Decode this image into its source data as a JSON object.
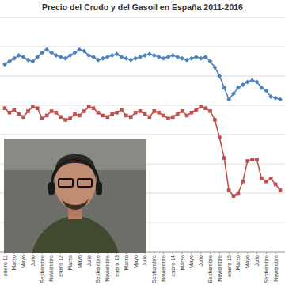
{
  "chart_data": {
    "type": "line",
    "title": "Precio del Crudo y del Gasoil en España 2011-2016",
    "categories": [
      "enero 11",
      null,
      "Marzo",
      null,
      "Mayo",
      null,
      "Julio",
      null,
      "Septiembre",
      null,
      "Noviembre",
      null,
      "enero 12",
      null,
      "Marzo",
      null,
      "Mayo",
      null,
      "Julio",
      null,
      "Septiembre",
      null,
      "Noviembre",
      null,
      "enero 13",
      null,
      "Marzo",
      null,
      "Mayo",
      null,
      "Julio",
      null,
      "Septiembre",
      null,
      "Noviembre",
      null,
      "enero 14",
      null,
      "Marzo",
      null,
      "Mayo",
      null,
      "Julio",
      null,
      "Septiembre",
      null,
      "Noviembre",
      null,
      "enero 15",
      null,
      "Marzo",
      null,
      "Mayo",
      null,
      "Julio",
      null,
      "Septiembre",
      null,
      "Noviembre",
      null
    ],
    "series": [
      {
        "color": "#4f81bd",
        "marker": "diamond",
        "values": [
          128,
          130,
          132,
          134,
          133,
          131,
          130,
          133,
          136,
          138,
          136,
          134,
          133,
          132,
          134,
          136,
          138,
          137,
          134,
          133,
          131,
          132,
          133,
          134,
          135,
          133,
          132,
          131,
          132,
          133,
          134,
          135,
          134,
          133,
          132,
          133,
          134,
          133,
          132,
          131,
          132,
          133,
          132,
          133,
          130,
          126,
          120,
          112,
          104,
          108,
          112,
          114,
          116,
          117,
          116,
          112,
          110,
          106,
          105,
          104
        ]
      },
      {
        "color": "#c0504d",
        "marker": "square",
        "values": [
          98,
          95,
          97,
          94,
          92,
          96,
          99,
          98,
          91,
          93,
          96,
          95,
          92,
          90,
          91,
          94,
          93,
          96,
          99,
          98,
          95,
          93,
          92,
          94,
          95,
          97,
          93,
          92,
          95,
          96,
          94,
          92,
          96,
          95,
          93,
          91,
          92,
          94,
          96,
          93,
          95,
          97,
          99,
          98,
          96,
          90,
          78,
          64,
          42,
          38,
          40,
          48,
          62,
          63,
          63,
          50,
          48,
          50,
          46,
          42
        ]
      }
    ],
    "ylim": [
      0,
      160
    ],
    "yticks": [
      0,
      20,
      40,
      60,
      80,
      100,
      120,
      140,
      160
    ],
    "grid": true,
    "tick_labels": "x"
  }
}
